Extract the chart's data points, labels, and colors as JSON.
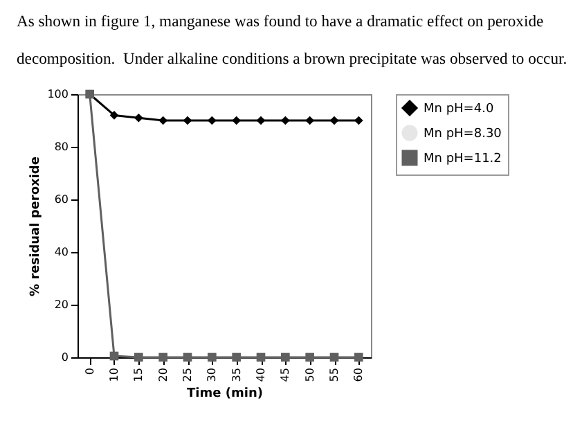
{
  "chart_data": {
    "type": "line",
    "annotations": [
      "As shown in figure 1, manganese was found to have a dramatic effect on peroxide",
      "decomposition.  Under alkaline conditions a brown precipitate was observed to occur."
    ],
    "xlabel": "Time (min)",
    "ylabel": "% residual peroxide",
    "categories": [
      "0",
      "10",
      "15",
      "20",
      "25",
      "30",
      "35",
      "40",
      "45",
      "50",
      "55",
      "60"
    ],
    "series": [
      {
        "name": "Mn pH=4.0",
        "color": "#000000",
        "marker": "diamond",
        "values": [
          100,
          92,
          91,
          90,
          90,
          90,
          90,
          90,
          90,
          90,
          90,
          90
        ]
      },
      {
        "name": "Mn pH=8.30",
        "color": "#e6e6e6",
        "marker": "circle",
        "values": [
          null,
          null,
          null,
          null,
          null,
          null,
          null,
          null,
          null,
          null,
          null,
          null
        ]
      },
      {
        "name": "Mn pH=11.2",
        "color": "#606060",
        "marker": "square",
        "values": [
          100,
          0.5,
          0,
          0,
          0,
          0,
          0,
          0,
          0,
          0,
          0,
          0
        ]
      }
    ],
    "ylim": [
      0,
      100
    ],
    "yticks": [
      0,
      20,
      40,
      60,
      80,
      100
    ],
    "grid": false,
    "legend": "right"
  }
}
